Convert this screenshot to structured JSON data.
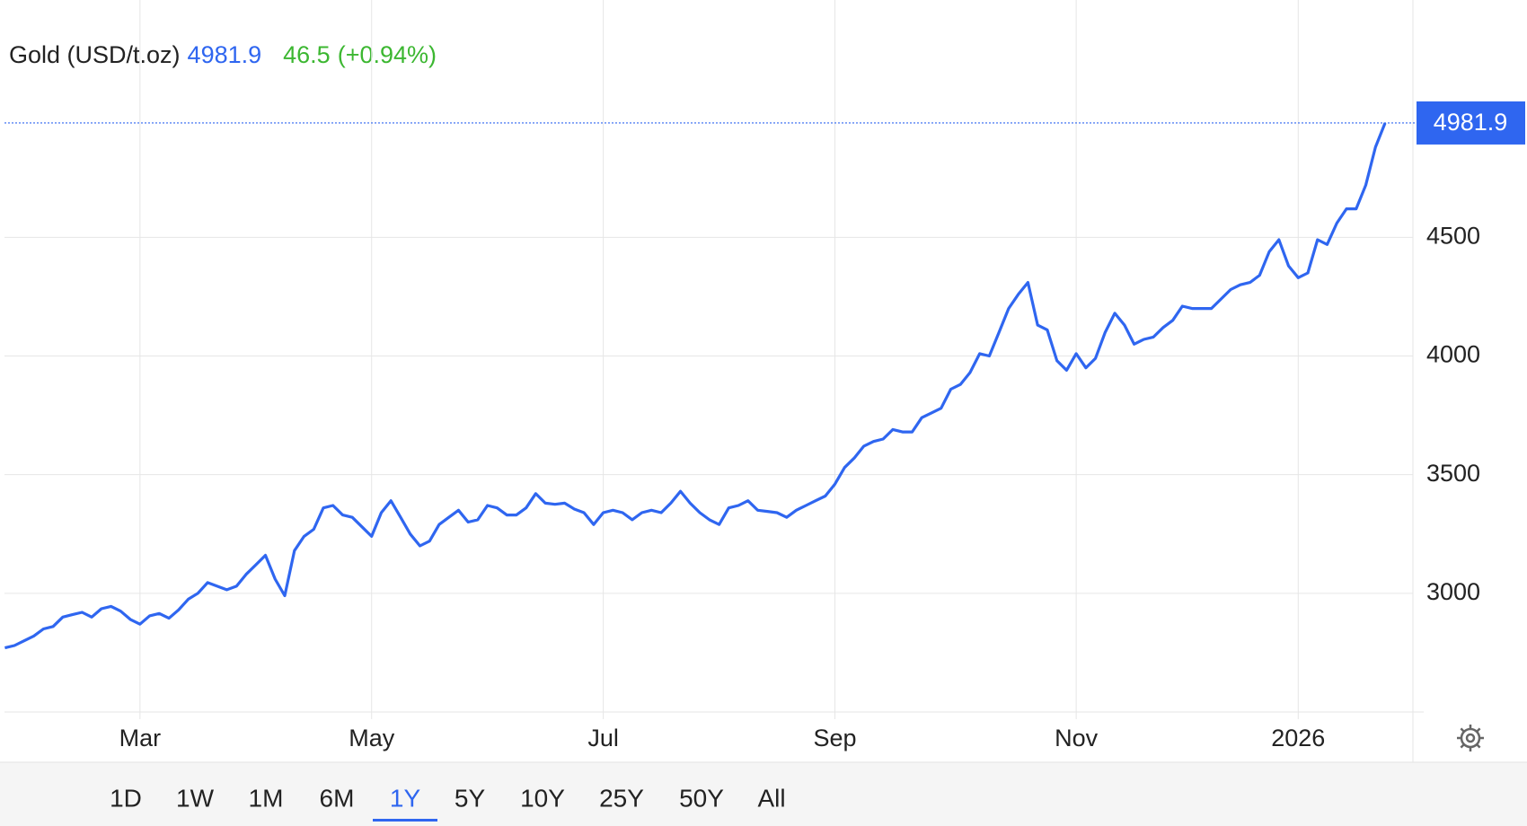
{
  "chart_data": {
    "type": "line",
    "title": "Gold (USD/t.oz)",
    "last_value": 4981.9,
    "change": 46.5,
    "change_label": "(+0.94%)",
    "color": "#2f66f0",
    "grid": true,
    "categories": [
      null,
      null,
      null,
      null,
      null,
      null,
      null,
      null,
      null,
      null,
      null,
      null,
      null,
      null,
      "Mar",
      null,
      null,
      null,
      null,
      null,
      null,
      null,
      null,
      null,
      null,
      null,
      null,
      null,
      null,
      null,
      null,
      null,
      null,
      null,
      null,
      null,
      null,
      null,
      "May",
      null,
      null,
      null,
      null,
      null,
      null,
      null,
      null,
      null,
      null,
      null,
      null,
      null,
      null,
      null,
      null,
      null,
      null,
      null,
      null,
      null,
      null,
      null,
      "Jul",
      null,
      null,
      null,
      null,
      null,
      null,
      null,
      null,
      null,
      null,
      null,
      null,
      null,
      null,
      null,
      null,
      null,
      null,
      null,
      null,
      null,
      null,
      null,
      "Sep",
      null,
      null,
      null,
      null,
      null,
      null,
      null,
      null,
      null,
      null,
      null,
      null,
      null,
      null,
      null,
      null,
      null,
      null,
      null,
      null,
      null,
      null,
      null,
      null,
      "Nov",
      null,
      null,
      null,
      null,
      null,
      null,
      null,
      null,
      null,
      null,
      null,
      null,
      null,
      null,
      null,
      null,
      null,
      null,
      null,
      null,
      null,
      null,
      "2026",
      null,
      null,
      null,
      null,
      null,
      null,
      null,
      null,
      null
    ],
    "values": [
      2770,
      2780,
      2800,
      2820,
      2850,
      2860,
      2900,
      2910,
      2920,
      2900,
      2935,
      2945,
      2925,
      2890,
      2870,
      2905,
      2915,
      2895,
      2930,
      2975,
      3000,
      3045,
      3030,
      3015,
      3030,
      3080,
      3120,
      3160,
      3060,
      2990,
      3180,
      3240,
      3270,
      3360,
      3370,
      3330,
      3320,
      3280,
      3240,
      3340,
      3390,
      3320,
      3250,
      3200,
      3220,
      3290,
      3320,
      3350,
      3300,
      3310,
      3370,
      3360,
      3330,
      3330,
      3360,
      3420,
      3380,
      3375,
      3380,
      3355,
      3340,
      3290,
      3340,
      3350,
      3340,
      3310,
      3340,
      3350,
      3340,
      3380,
      3430,
      3380,
      3340,
      3310,
      3290,
      3360,
      3370,
      3390,
      3350,
      3345,
      3340,
      3320,
      3350,
      3370,
      3390,
      3410,
      3460,
      3530,
      3570,
      3620,
      3640,
      3650,
      3690,
      3680,
      3680,
      3740,
      3760,
      3780,
      3860,
      3880,
      3930,
      4010,
      4000,
      4100,
      4200,
      4260,
      4310,
      4130,
      4110,
      3980,
      3940,
      4010,
      3950,
      3990,
      4100,
      4180,
      4130,
      4050,
      4070,
      4080,
      4120,
      4150,
      4210,
      4200,
      4200,
      4200,
      4240,
      4280,
      4300,
      4310,
      4340,
      4440,
      4490,
      4380,
      4330,
      4350,
      4490,
      4470,
      4560,
      4620,
      4620,
      4720,
      4880,
      4981.9
    ],
    "ylim": [
      2500,
      5500
    ],
    "yticks": [
      3000,
      3500,
      4000,
      4500
    ]
  },
  "range_buttons": [
    "1D",
    "1W",
    "1M",
    "6M",
    "1Y",
    "5Y",
    "10Y",
    "25Y",
    "50Y",
    "All"
  ],
  "selected_range": 4
}
